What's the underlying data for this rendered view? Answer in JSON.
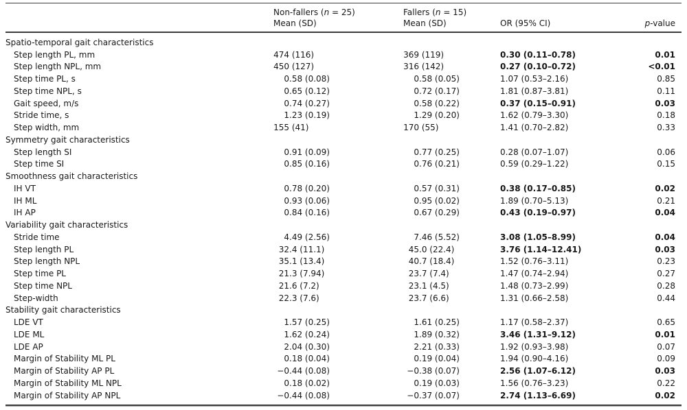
{
  "table": {
    "header": {
      "nonfallers": {
        "pre": "Non-fallers (",
        "italic": "n",
        "post": " = 25)",
        "sub": "Mean (SD)"
      },
      "fallers": {
        "pre": "Fallers (",
        "italic": "n",
        "post": " = 15)",
        "sub": "Mean (SD)"
      },
      "or": "OR (95% CI)",
      "p": {
        "italic": "p",
        "post": "-value"
      }
    },
    "sections": [
      {
        "title": "Spatio-temporal gait characteristics",
        "rows": [
          {
            "label": "Step length PL, mm",
            "nonfallers": "474 (116)",
            "fallers": "369 (119)",
            "or": "0.30 (0.11–0.78)",
            "p": "0.01",
            "significant": true
          },
          {
            "label": "Step length NPL, mm",
            "nonfallers": "450 (127)",
            "fallers": "316 (142)",
            "or": "0.27 (0.10–0.72)",
            "p": "<0.01",
            "significant": true
          },
          {
            "label": "Step time PL, s",
            "nonfallers": "0.58 (0.08)",
            "fallers": "0.58 (0.05)",
            "or": "1.07 (0.53–2.16)",
            "p": "0.85",
            "significant": false
          },
          {
            "label": "Step time NPL, s",
            "nonfallers": "0.65 (0.12)",
            "fallers": "0.72 (0.17)",
            "or": "1.81 (0.87–3.81)",
            "p": "0.11",
            "significant": false
          },
          {
            "label": "Gait speed, m/s",
            "nonfallers": "0.74 (0.27)",
            "fallers": "0.58 (0.22)",
            "or": "0.37 (0.15–0.91)",
            "p": "0.03",
            "significant": true
          },
          {
            "label": "Stride time, s",
            "nonfallers": "1.23 (0.19)",
            "fallers": "1.29 (0.20)",
            "or": "1.62 (0.79–3.30)",
            "p": "0.18",
            "significant": false
          },
          {
            "label": "Step width, mm",
            "nonfallers": "155 (41)",
            "fallers": "170 (55)",
            "or": "1.41 (0.70–2.82)",
            "p": "0.33",
            "significant": false
          }
        ]
      },
      {
        "title": "Symmetry gait characteristics",
        "rows": [
          {
            "label": "Step length SI",
            "nonfallers": "0.91 (0.09)",
            "fallers": "0.77 (0.25)",
            "or": "0.28 (0.07–1.07)",
            "p": "0.06",
            "significant": false
          },
          {
            "label": "Step time SI",
            "nonfallers": "0.85 (0.16)",
            "fallers": "0.76 (0.21)",
            "or": "0.59 (0.29–1.22)",
            "p": "0.15",
            "significant": false
          }
        ]
      },
      {
        "title": "Smoothness gait characteristics",
        "rows": [
          {
            "label": "IH VT",
            "nonfallers": "0.78 (0.20)",
            "fallers": "0.57 (0.31)",
            "or": "0.38 (0.17–0.85)",
            "p": "0.02",
            "significant": true
          },
          {
            "label": "IH ML",
            "nonfallers": "0.93 (0.06)",
            "fallers": "0.95 (0.02)",
            "or": "1.89 (0.70–5.13)",
            "p": "0.21",
            "significant": false
          },
          {
            "label": "IH AP",
            "nonfallers": "0.84 (0.16)",
            "fallers": "0.67 (0.29)",
            "or": "0.43 (0.19–0.97)",
            "p": "0.04",
            "significant": true
          }
        ]
      },
      {
        "title": "Variability gait characteristics",
        "rows": [
          {
            "label": "Stride time",
            "nonfallers": "4.49 (2.56)",
            "fallers": "7.46 (5.52)",
            "or": "3.08 (1.05–8.99)",
            "p": "0.04",
            "significant": true
          },
          {
            "label": "Step length PL",
            "nonfallers": "32.4 (11.1)",
            "fallers": "45.0 (22.4)",
            "or": "3.76 (1.14–12.41)",
            "p": "0.03",
            "significant": true
          },
          {
            "label": "Step length NPL",
            "nonfallers": "35.1 (13.4)",
            "fallers": "40.7 (18.4)",
            "or": "1.52 (0.76–3.11)",
            "p": "0.23",
            "significant": false
          },
          {
            "label": "Step time PL",
            "nonfallers": "21.3 (7.94)",
            "fallers": "23.7 (7.4)",
            "or": "1.47 (0.74–2.94)",
            "p": "0.27",
            "significant": false
          },
          {
            "label": "Step time NPL",
            "nonfallers": "21.6 (7.2)",
            "fallers": "23.1 (4.5)",
            "or": "1.48 (0.73–2.99)",
            "p": "0.28",
            "significant": false
          },
          {
            "label": "Step-width",
            "nonfallers": "22.3 (7.6)",
            "fallers": "23.7 (6.6)",
            "or": "1.31 (0.66–2.58)",
            "p": "0.44",
            "significant": false
          }
        ]
      },
      {
        "title": "Stability gait characteristics",
        "rows": [
          {
            "label": "LDE VT",
            "nonfallers": "1.57 (0.25)",
            "fallers": "1.61 (0.25)",
            "or": "1.17 (0.58–2.37)",
            "p": "0.65",
            "significant": false
          },
          {
            "label": "LDE ML",
            "nonfallers": "1.62 (0.24)",
            "fallers": "1.89 (0.32)",
            "or": "3.46 (1.31–9.12)",
            "p": "0.01",
            "significant": true
          },
          {
            "label": "LDE AP",
            "nonfallers": "2.04 (0.30)",
            "fallers": "2.21 (0.33)",
            "or": "1.92 (0.93–3.98)",
            "p": "0.07",
            "significant": false
          },
          {
            "label": "Margin of Stability ML PL",
            "nonfallers": "0.18 (0.04)",
            "fallers": "0.19 (0.04)",
            "or": "1.94 (0.90–4.16)",
            "p": "0.09",
            "significant": false
          },
          {
            "label": "Margin of Stability AP PL",
            "nonfallers": "−0.44 (0.08)",
            "fallers": "−0.38 (0.07)",
            "or": "2.56 (1.07–6.12)",
            "p": "0.03",
            "significant": true
          },
          {
            "label": "Margin of Stability ML NPL",
            "nonfallers": "0.18 (0.02)",
            "fallers": "0.19 (0.03)",
            "or": "1.56 (0.76–3.23)",
            "p": "0.22",
            "significant": false
          },
          {
            "label": "Margin of Stability AP NPL",
            "nonfallers": "−0.44 (0.08)",
            "fallers": "−0.37 (0.07)",
            "or": "2.74 (1.13–6.69)",
            "p": "0.02",
            "significant": true
          }
        ]
      }
    ]
  }
}
